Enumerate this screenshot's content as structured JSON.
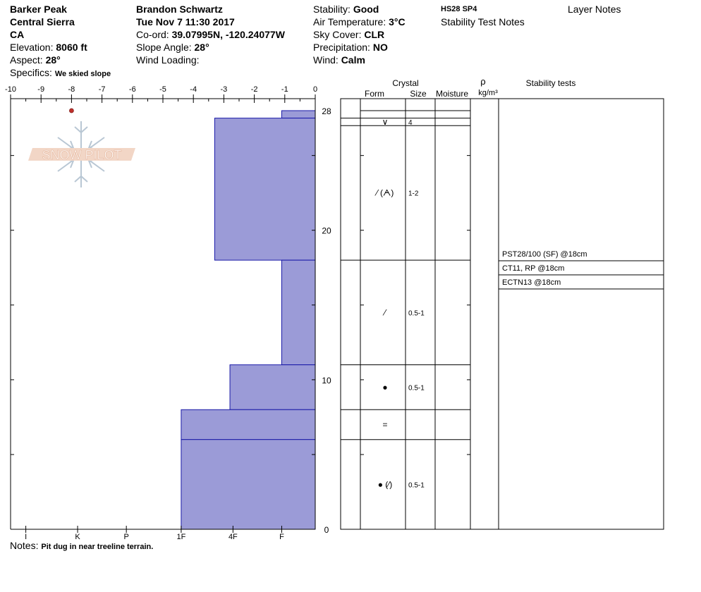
{
  "header": {
    "location": "Barker Peak",
    "range": "Central Sierra",
    "state": "CA",
    "elevation_label": "Elevation:",
    "elevation_value": "8060 ft",
    "aspect_label": "Aspect:",
    "aspect_value": "28°",
    "specifics_label": "Specifics:",
    "specifics_value": "We skied slope",
    "observer": "Brandon Schwartz",
    "datetime": "Tue Nov 7 11:30 2017",
    "coord_label": "Co-ord:",
    "coord_value": "39.07995N, -120.24077W",
    "slope_label": "Slope Angle:",
    "slope_value": "28°",
    "wind_loading_label": "Wind Loading:",
    "wind_loading_value": "",
    "stability_label": "Stability:",
    "stability_value": "Good",
    "air_temp_label": "Air Temperature:",
    "air_temp_value": "3°C",
    "sky_label": "Sky Cover:",
    "sky_value": "CLR",
    "precip_label": "Precipitation:",
    "precip_value": "NO",
    "wind_label": "Wind:",
    "wind_value": "Calm",
    "hs_sp": "HS28 SP4",
    "stability_test_notes": "Stability Test Notes",
    "layer_notes": "Layer Notes"
  },
  "notes": {
    "label": "Notes:",
    "value": "Pit dug in near treeline terrain."
  },
  "logo_text": "SNOW PILOT",
  "chart_data": {
    "type": "bar",
    "temp_axis": {
      "ticks": [
        -10,
        -9,
        -8,
        -7,
        -6,
        -5,
        -4,
        -3,
        -2,
        -1,
        0
      ],
      "tick_labels": [
        "-10",
        "-9",
        "-8",
        "-7",
        "-6",
        "-5",
        "-4",
        "-3",
        "-2",
        "-1",
        "0"
      ],
      "range": [
        -10,
        0
      ]
    },
    "depth_axis": {
      "range": [
        0,
        28
      ],
      "tick_labels": [
        {
          "depth": 28,
          "label": "28"
        },
        {
          "depth": 20,
          "label": "20"
        },
        {
          "depth": 10,
          "label": "10"
        },
        {
          "depth": 0,
          "label": "0"
        }
      ],
      "minor_ticks": [
        0,
        5,
        10,
        15,
        20,
        25
      ]
    },
    "hardness_axis": {
      "labels": [
        "I",
        "K",
        "P",
        "1F",
        "4F",
        "F"
      ],
      "label_positions": [
        -9.5,
        -7.8,
        -6.2,
        -4.4,
        -2.7,
        -1.1
      ]
    },
    "temperature_points": [
      {
        "depth": 28,
        "temp": -8
      }
    ],
    "hardness_layers": [
      {
        "top": 28,
        "bottom": 27.5,
        "hardness": -1.1
      },
      {
        "top": 27.5,
        "bottom": 18,
        "hardness": -3.3
      },
      {
        "top": 18,
        "bottom": 11,
        "hardness": -1.1
      },
      {
        "top": 11,
        "bottom": 8,
        "hardness": -2.8
      },
      {
        "top": 8,
        "bottom": 6,
        "hardness": -4.4
      },
      {
        "top": 6,
        "bottom": 0,
        "hardness": -4.4
      }
    ],
    "crystal_table": {
      "headers": {
        "crystal": "Crystal",
        "form": "Form",
        "size": "Size",
        "moisture": "Moisture",
        "rho": "ρ",
        "density_unit": "kg/m³",
        "stability_tests": "Stability tests"
      },
      "layers": [
        {
          "top": 28,
          "bottom": 27.5,
          "form": "",
          "size": ""
        },
        {
          "top": 27.5,
          "bottom": 27,
          "form": "∨",
          "size": "4"
        },
        {
          "top": 27,
          "bottom": 18,
          "form": "⁄ (ᗅ)",
          "size": "1-2"
        },
        {
          "top": 18,
          "bottom": 11,
          "form": "⁄",
          "size": "0.5-1"
        },
        {
          "top": 11,
          "bottom": 8,
          "form": "●",
          "size": "0.5-1"
        },
        {
          "top": 8,
          "bottom": 6,
          "form": "=",
          "size": ""
        },
        {
          "top": 6,
          "bottom": 0,
          "form": "● (⁄)",
          "size": "0.5-1"
        }
      ]
    },
    "stability_tests": [
      "PST28/100 (SF) @18cm",
      "CT11, RP @18cm",
      "ECTN13 @18cm"
    ]
  }
}
